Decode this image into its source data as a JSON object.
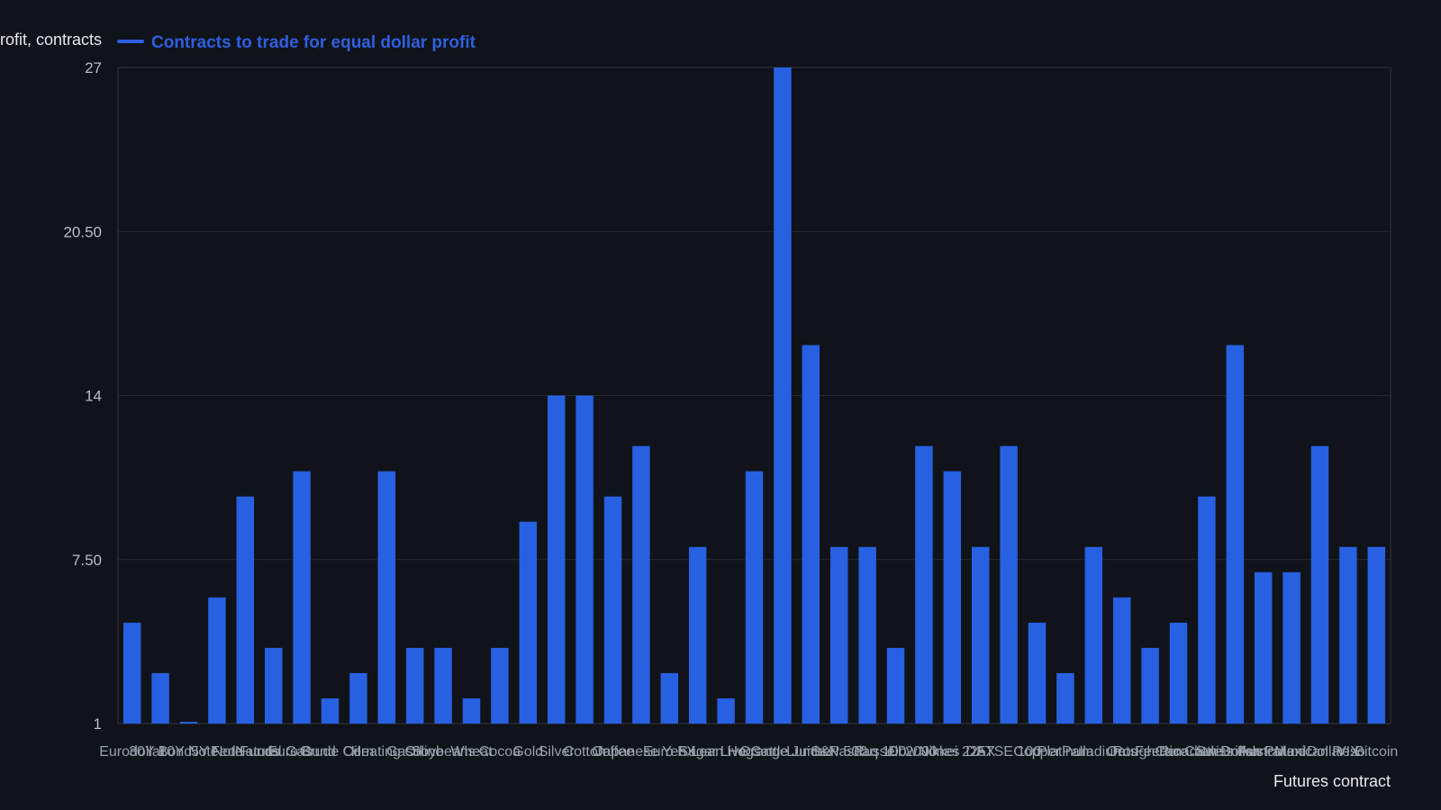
{
  "chart_data": {
    "type": "bar",
    "ylabel": "Equal dollar profit, contracts",
    "xlabel": "Futures contract",
    "yticks": [
      "1",
      "7.50",
      "14",
      "20.50",
      "27"
    ],
    "ylim": [
      1,
      27
    ],
    "grid": true,
    "legend_position": "top-left",
    "series": [
      {
        "name": "Contracts to trade for equal dollar profit",
        "color": "#2760e0",
        "values": [
          5,
          3,
          1,
          6,
          10,
          4,
          11,
          2,
          3,
          11,
          4,
          4,
          2,
          4,
          9,
          14,
          14,
          10,
          12,
          3,
          8,
          2,
          11,
          27,
          16,
          8,
          8,
          4,
          12,
          11,
          8,
          12,
          5,
          3,
          8,
          6,
          4,
          5,
          10,
          16,
          7,
          7,
          12,
          8,
          8
        ]
      }
    ],
    "categories": [
      "Eurodollar",
      "30Y Bond",
      "10Y Note",
      "5Y Note",
      "Fed Funds",
      "Natural Gas",
      "Euro Bund",
      "Crude Oil",
      "Corn",
      "Heating Oil",
      "Gasoline",
      "Soybeans",
      "Wheat",
      "Cocoa",
      "Gold",
      "Silver",
      "Cotton",
      "Coffee",
      "Japanese Yen",
      "Euro FX",
      "Sugar",
      "Lean Hogs",
      "Live Cattle",
      "Orange Juice",
      "Lumber",
      "S&P 500",
      "Nasdaq 100",
      "Russell 2000",
      "Dow Jones",
      "Nikkei 225",
      "DAX",
      "FTSE 100",
      "Copper",
      "Platinum",
      "Palladium",
      "Oats",
      "Rough Rice",
      "Feeder Cattle",
      "Canadian Dollar",
      "Swiss Franc",
      "British Pound",
      "Australian Dollar",
      "Mexican Peso",
      "VIX",
      "Bitcoin"
    ]
  }
}
